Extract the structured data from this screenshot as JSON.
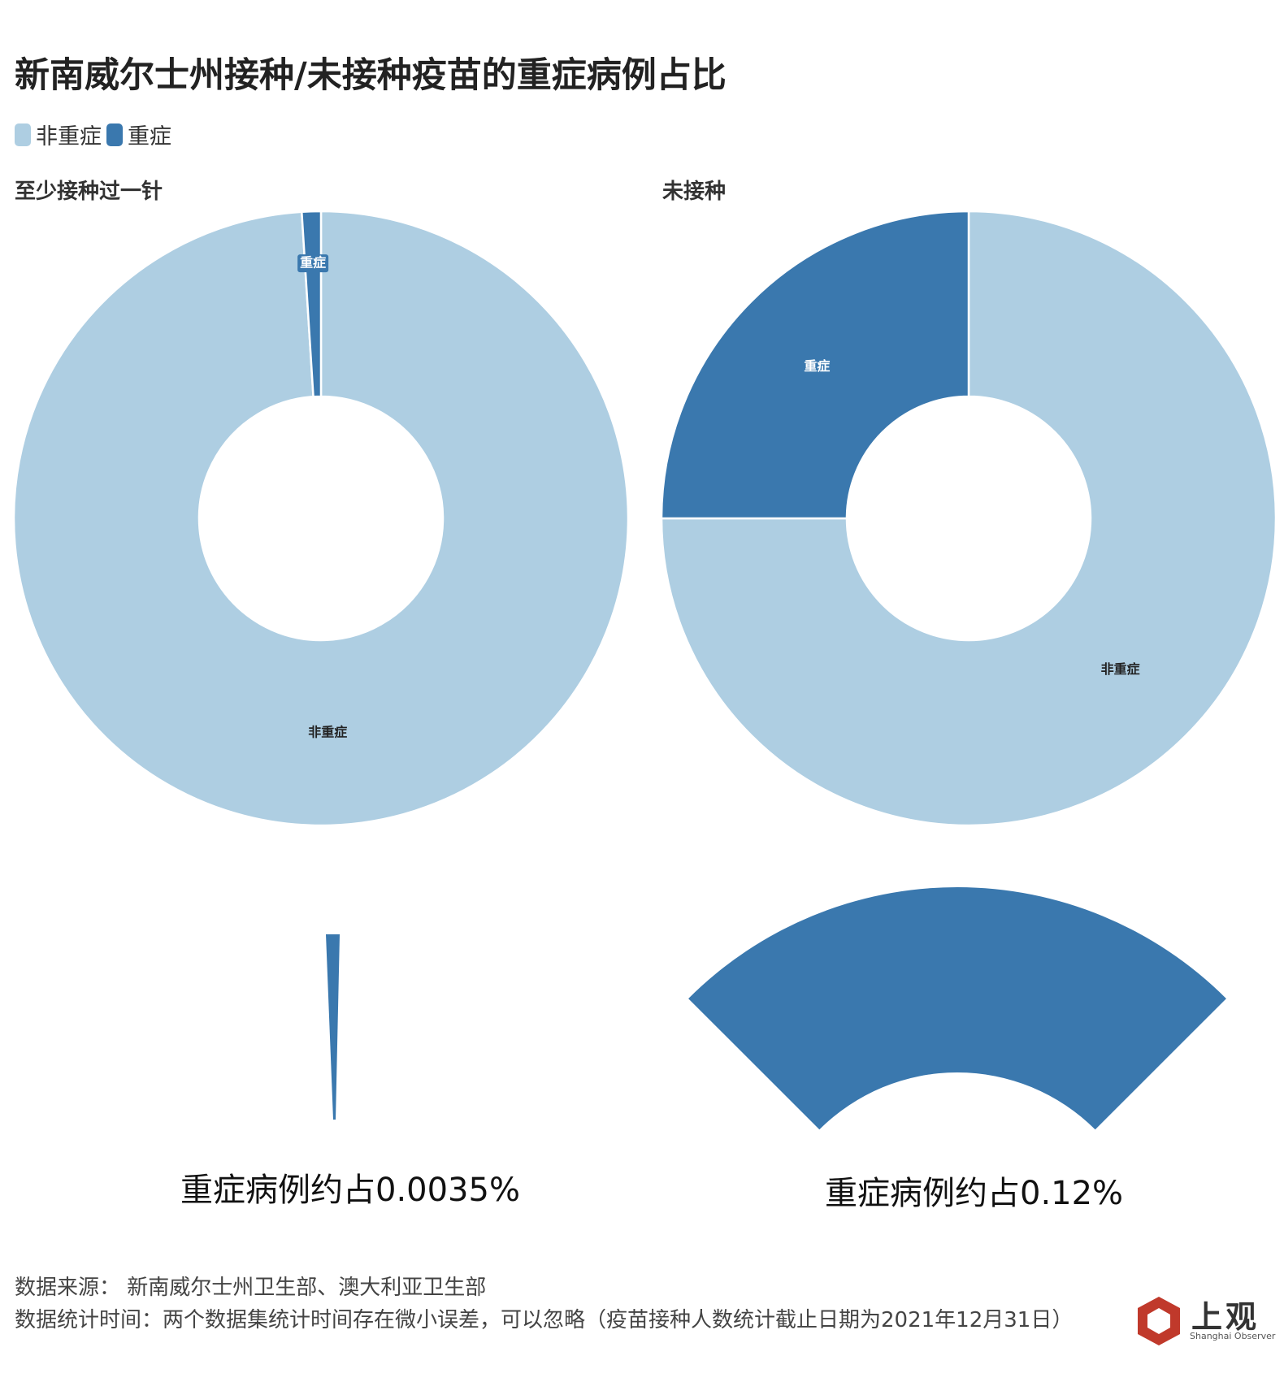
{
  "title": "新南威尔士州接种/未接种疫苗的重症病例占比",
  "colors": {
    "non_severe": "#aecee2",
    "severe": "#3a78ae"
  },
  "chart_data": [
    {
      "type": "pie",
      "subtitle": "至少接种过一针",
      "legend": [
        "非重症",
        "重症"
      ],
      "legend_position": "top-left",
      "donut": true,
      "start_angle_deg": -2,
      "slices": [
        {
          "label": "非重症",
          "value": 0.99
        },
        {
          "label": "重症",
          "value": 0.01
        }
      ],
      "slice_labels": [
        "非重症",
        "重症"
      ],
      "zoom_caption": "重症病例约占0.0035%"
    },
    {
      "type": "pie",
      "subtitle": "未接种",
      "donut": true,
      "start_angle_deg": -91,
      "slices": [
        {
          "label": "非重症",
          "value": 0.75
        },
        {
          "label": "重症",
          "value": 0.25
        }
      ],
      "slice_labels": [
        "非重症",
        "重症"
      ],
      "zoom_caption": "重症病例约占0.12%"
    }
  ],
  "footer": {
    "source": "数据来源： 新南威尔士州卫生部、澳大利亚卫生部",
    "note": "数据统计时间：两个数据集统计时间存在微小误差，可以忽略（疫苗接种人数统计截止日期为2021年12月31日）"
  },
  "logo": {
    "name": "上观",
    "sub": "Shanghai Observer",
    "color": "#c0392b"
  }
}
